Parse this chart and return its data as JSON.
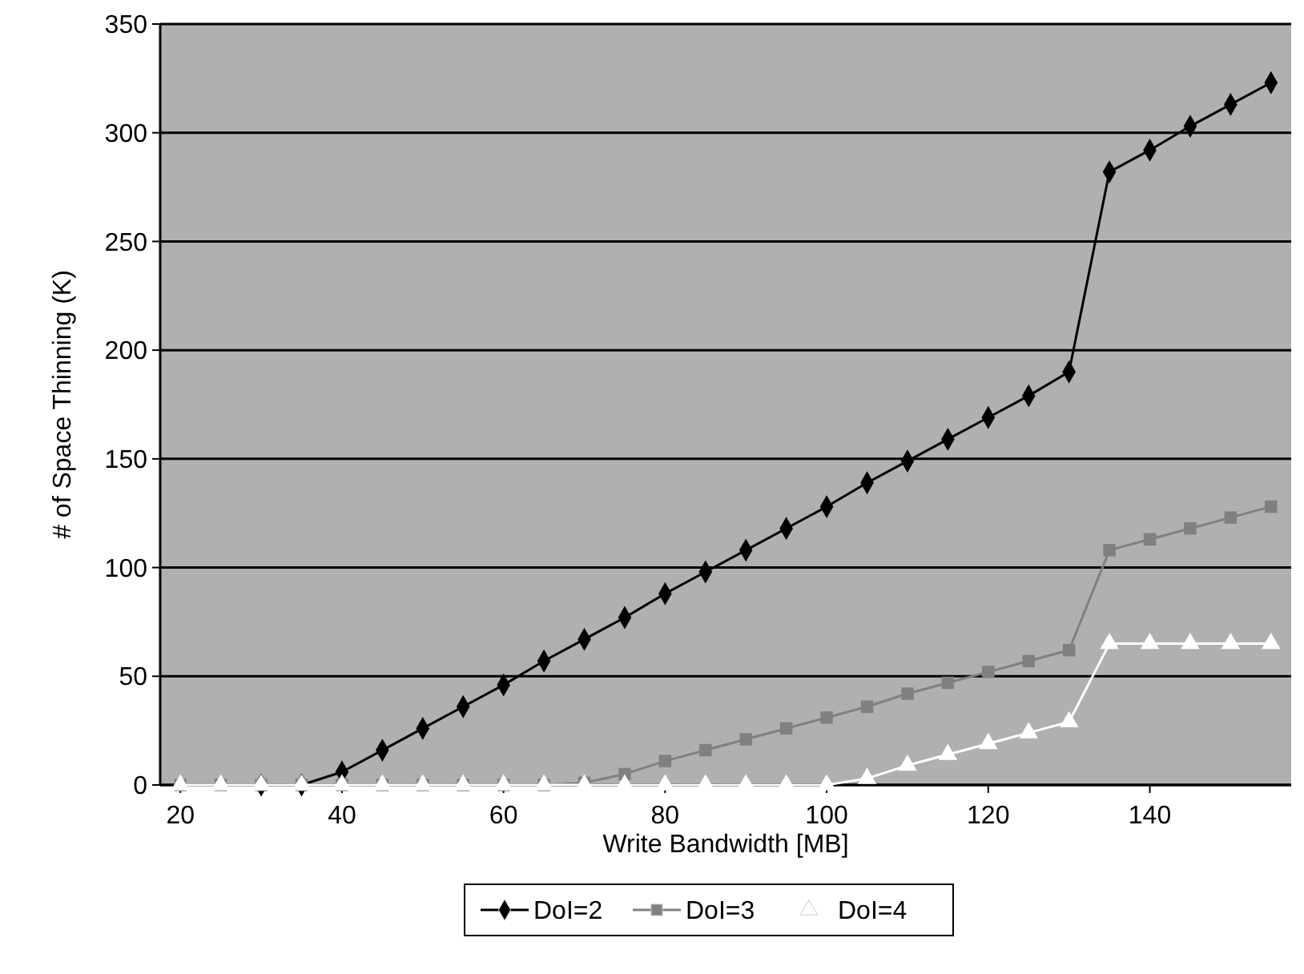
{
  "chart_data": {
    "type": "line",
    "xlabel": "Write Bandwidth [MB]",
    "ylabel": "# of Space Thinning (K)",
    "x": [
      20,
      25,
      30,
      35,
      40,
      45,
      50,
      55,
      60,
      65,
      70,
      75,
      80,
      85,
      90,
      95,
      100,
      105,
      110,
      115,
      120,
      125,
      130,
      135,
      140,
      145,
      150,
      155
    ],
    "series": [
      {
        "name": "DoI=2",
        "color": "#000000",
        "marker": "diamond",
        "values": [
          null,
          null,
          0,
          0,
          6,
          16,
          26,
          36,
          46,
          57,
          67,
          77,
          88,
          98,
          108,
          118,
          128,
          139,
          149,
          159,
          169,
          179,
          190,
          282,
          292,
          303,
          313,
          323
        ]
      },
      {
        "name": "DoI=3",
        "color": "#808080",
        "marker": "square",
        "values": [
          0,
          0,
          0,
          0,
          0,
          0,
          0,
          0,
          0,
          0,
          1,
          5,
          11,
          16,
          21,
          26,
          31,
          36,
          42,
          47,
          52,
          57,
          62,
          108,
          113,
          118,
          123,
          128
        ]
      },
      {
        "name": "DoI=4",
        "color": "#ffffff",
        "marker": "triangle",
        "values": [
          0,
          0,
          0,
          0,
          0,
          0,
          0,
          0,
          0,
          0,
          0,
          0,
          0,
          0,
          0,
          0,
          0,
          3,
          9,
          14,
          19,
          24,
          29,
          65,
          65,
          65,
          65,
          65
        ]
      }
    ],
    "xlim": [
      17.5,
      157.5
    ],
    "xticks": [
      20,
      40,
      60,
      80,
      100,
      120,
      140
    ],
    "ylim": [
      0,
      350
    ],
    "yticks": [
      0,
      50,
      100,
      150,
      200,
      250,
      300,
      350
    ],
    "grid": "y",
    "legend": "bottom"
  }
}
